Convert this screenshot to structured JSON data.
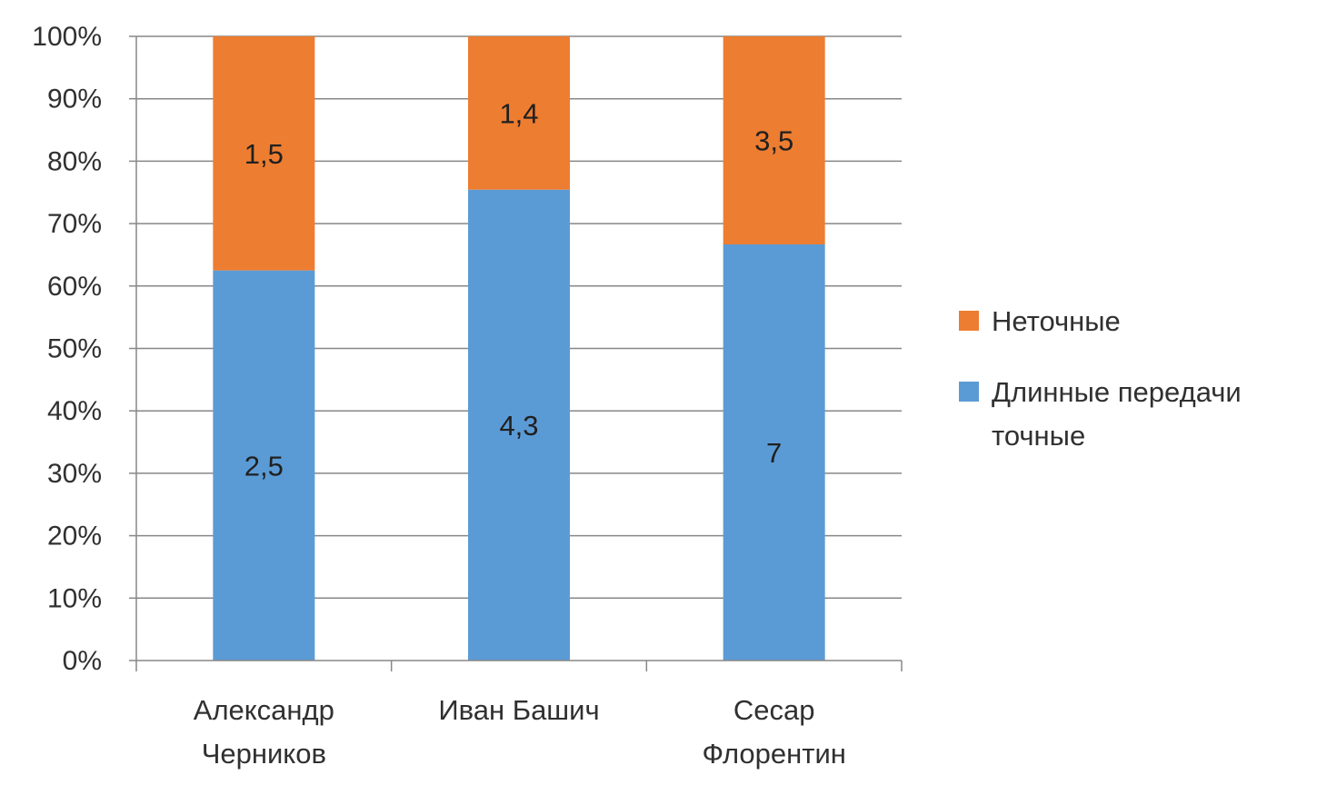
{
  "chart_data": {
    "type": "bar",
    "stacked": "percent",
    "categories": [
      [
        "Александр",
        "Черников"
      ],
      [
        "Иван Башич"
      ],
      [
        "Сесар",
        "Флорентин"
      ]
    ],
    "series": [
      {
        "name": "Длинные передачи точные",
        "values": [
          2.5,
          4.3,
          7
        ],
        "labels": [
          "2,5",
          "4,3",
          "7"
        ],
        "color": "#5b9bd5"
      },
      {
        "name": "Неточные",
        "values": [
          1.5,
          1.4,
          3.5
        ],
        "labels": [
          "1,5",
          "1,4",
          "3,5"
        ],
        "color": "#ed7d31"
      }
    ],
    "ylim": [
      0,
      100
    ],
    "yticks": [
      "0%",
      "10%",
      "20%",
      "30%",
      "40%",
      "50%",
      "60%",
      "70%",
      "80%",
      "90%",
      "100%"
    ],
    "grid": true,
    "legend_position": "right"
  },
  "legend": {
    "items": [
      {
        "label_lines": [
          "Неточные"
        ],
        "color": "#ed7d31"
      },
      {
        "label_lines": [
          "Длинные передачи",
          "точные"
        ],
        "color": "#5b9bd5"
      }
    ]
  }
}
